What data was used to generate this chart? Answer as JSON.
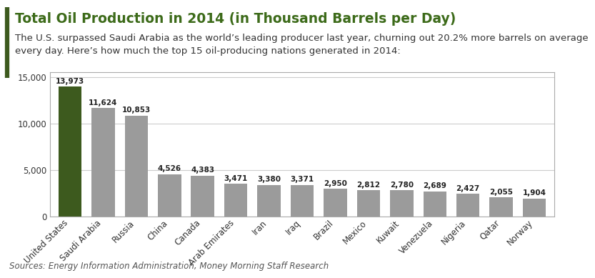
{
  "title": "Total Oil Production in 2014 (in Thousand Barrels per Day)",
  "subtitle": "The U.S. surpassed Saudi Arabia as the world’s leading producer last year, churning out 20.2% more barrels on average\nevery day. Here’s how much the top 15 oil-producing nations generated in 2014:",
  "source": "Sources: Energy Information Administration, Money Morning Staff Research",
  "categories": [
    "United States",
    "Saudi Arabia",
    "Russia",
    "China",
    "Canada",
    "Arab Emirates",
    "Iran",
    "Iraq",
    "Brazil",
    "Mexico",
    "Kuwait",
    "Venezuela",
    "Nigeria",
    "Qatar",
    "Norway"
  ],
  "values": [
    13973,
    11624,
    10853,
    4526,
    4383,
    3471,
    3380,
    3371,
    2950,
    2812,
    2780,
    2689,
    2427,
    2055,
    1904
  ],
  "bar_colors": [
    "#3d5a1e",
    "#9b9b9b",
    "#9b9b9b",
    "#9b9b9b",
    "#9b9b9b",
    "#9b9b9b",
    "#9b9b9b",
    "#9b9b9b",
    "#9b9b9b",
    "#9b9b9b",
    "#9b9b9b",
    "#9b9b9b",
    "#9b9b9b",
    "#9b9b9b",
    "#9b9b9b"
  ],
  "ylim": [
    0,
    15500
  ],
  "yticks": [
    0,
    5000,
    10000,
    15000
  ],
  "title_color": "#3d6b1a",
  "subtitle_color": "#333333",
  "source_color": "#555555",
  "background_color": "#ffffff",
  "title_fontsize": 13.5,
  "subtitle_fontsize": 9.5,
  "source_fontsize": 8.5,
  "value_fontsize": 7.5,
  "tick_label_fontsize": 8.5,
  "accent_color": "#3d5a1e"
}
